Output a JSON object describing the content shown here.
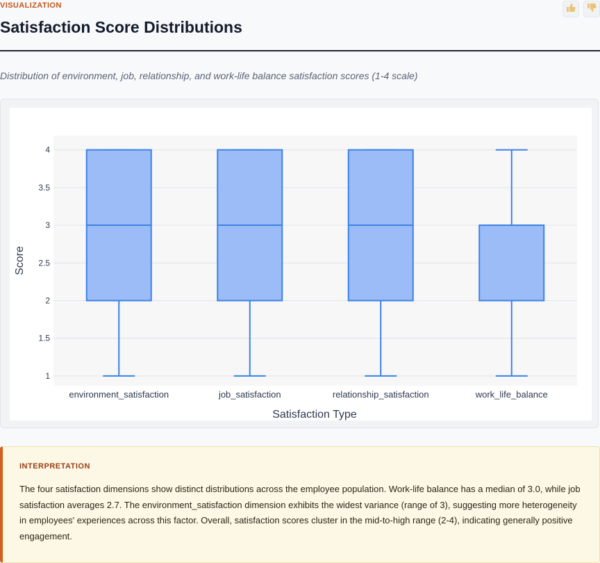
{
  "header": {
    "section_label": "VISUALIZATION",
    "title": "Satisfaction Score Distributions",
    "subtitle": "Distribution of environment, job, relationship, and work-life balance satisfaction scores (1-4 scale)"
  },
  "feedback": {
    "up_icon": "thumbs-up-icon",
    "down_icon": "thumbs-down-icon"
  },
  "chart_data": {
    "type": "box",
    "title": "",
    "xlabel": "Satisfaction Type",
    "ylabel": "Score",
    "ylim": [
      0.87,
      4.19
    ],
    "yticks": [
      1,
      1.5,
      2,
      2.5,
      3,
      3.5,
      4
    ],
    "ytick_labels": [
      "1",
      "1.5",
      "2",
      "2.5",
      "3",
      "3.5",
      "4"
    ],
    "grid": true,
    "categories": [
      "environment_satisfaction",
      "job_satisfaction",
      "relationship_satisfaction",
      "work_life_balance"
    ],
    "boxes": [
      {
        "category": "environment_satisfaction",
        "min": 1,
        "q1": 2,
        "median": 3,
        "q3": 4,
        "max": 4
      },
      {
        "category": "job_satisfaction",
        "min": 1,
        "q1": 2,
        "median": 3,
        "q3": 4,
        "max": 4
      },
      {
        "category": "relationship_satisfaction",
        "min": 1,
        "q1": 2,
        "median": 3,
        "q3": 4,
        "max": 4
      },
      {
        "category": "work_life_balance",
        "min": 1,
        "q1": 2,
        "median": 3,
        "q3": 3,
        "max": 4
      }
    ],
    "colors": {
      "box_fill": "#9bbcf6",
      "box_line": "#3b82e6"
    }
  },
  "interpretation": {
    "label": "INTERPRETATION",
    "text": "The four satisfaction dimensions show distinct distributions across the employee population. Work-life balance has a median of 3.0, while job satisfaction averages 2.7. The environment_satisfaction dimension exhibits the widest variance (range of 3), suggesting more heterogeneity in employees' experiences across this factor. Overall, satisfaction scores cluster in the mid-to-high range (2-4), indicating generally positive engagement."
  }
}
